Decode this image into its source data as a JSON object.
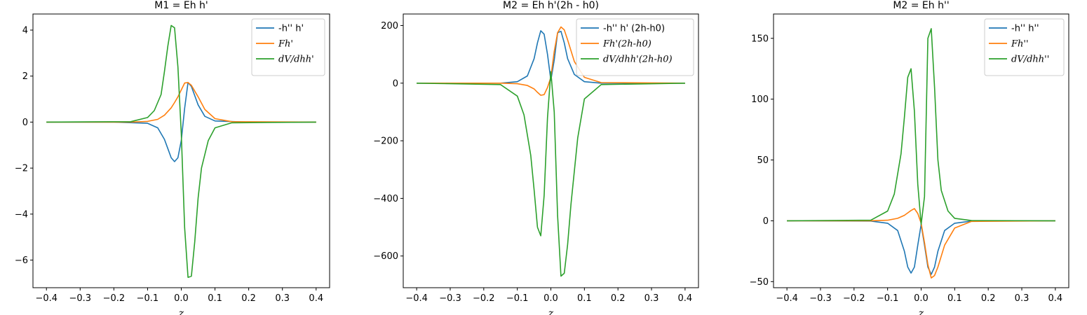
{
  "chart_data": [
    {
      "type": "line",
      "title": "M1 = Eh h'",
      "xlabel": "z",
      "ylabel": "",
      "xlim": [
        -0.44,
        0.44
      ],
      "ylim": [
        -7.2,
        4.7
      ],
      "xticks": [
        -0.4,
        -0.3,
        -0.2,
        -0.1,
        0.0,
        0.1,
        0.2,
        0.3,
        0.4
      ],
      "xtick_labels": [
        "−0.4",
        "−0.3",
        "−0.2",
        "−0.1",
        "0.0",
        "0.1",
        "0.2",
        "0.3",
        "0.4"
      ],
      "yticks": [
        -6,
        -4,
        -2,
        0,
        2,
        4
      ],
      "ytick_labels": [
        "−6",
        "−4",
        "−2",
        "0",
        "2",
        "4"
      ],
      "legend_position": "upper right",
      "series": [
        {
          "name": "-h'' h'",
          "color": "#1f77b4",
          "x": [
            -0.4,
            -0.2,
            -0.1,
            -0.07,
            -0.05,
            -0.04,
            -0.03,
            -0.02,
            -0.01,
            0.0,
            0.01,
            0.02,
            0.03,
            0.04,
            0.05,
            0.07,
            0.1,
            0.2,
            0.4
          ],
          "y": [
            0,
            0,
            -0.05,
            -0.25,
            -0.75,
            -1.15,
            -1.55,
            -1.72,
            -1.55,
            -0.8,
            0.6,
            1.72,
            1.55,
            1.15,
            0.75,
            0.25,
            0.05,
            0,
            0
          ]
        },
        {
          "name": "Fh'",
          "color": "#ff7f0e",
          "math": true,
          "x": [
            -0.4,
            -0.15,
            -0.1,
            -0.07,
            -0.05,
            -0.03,
            -0.02,
            -0.01,
            0.0,
            0.01,
            0.02,
            0.03,
            0.05,
            0.07,
            0.1,
            0.15,
            0.4
          ],
          "y": [
            0,
            0,
            0.03,
            0.12,
            0.3,
            0.62,
            0.85,
            1.1,
            1.4,
            1.7,
            1.72,
            1.6,
            1.1,
            0.55,
            0.15,
            0.02,
            0
          ]
        },
        {
          "name": "dV/dhh'",
          "color": "#2ca02c",
          "math": true,
          "x": [
            -0.4,
            -0.15,
            -0.1,
            -0.08,
            -0.06,
            -0.05,
            -0.04,
            -0.03,
            -0.02,
            -0.01,
            0.0,
            0.01,
            0.02,
            0.03,
            0.04,
            0.05,
            0.06,
            0.08,
            0.1,
            0.15,
            0.4
          ],
          "y": [
            0,
            0.02,
            0.2,
            0.5,
            1.2,
            2.2,
            3.3,
            4.2,
            4.1,
            2.4,
            -0.5,
            -4.6,
            -6.75,
            -6.7,
            -5.2,
            -3.3,
            -2.0,
            -0.8,
            -0.25,
            -0.03,
            0
          ]
        }
      ]
    },
    {
      "type": "line",
      "title": "M2 = Eh h'(2h - h0)",
      "xlabel": "z",
      "ylabel": "",
      "xlim": [
        -0.44,
        0.44
      ],
      "ylim": [
        -710,
        240
      ],
      "xticks": [
        -0.4,
        -0.3,
        -0.2,
        -0.1,
        0.0,
        0.1,
        0.2,
        0.3,
        0.4
      ],
      "xtick_labels": [
        "−0.4",
        "−0.3",
        "−0.2",
        "−0.1",
        "0.0",
        "0.1",
        "0.2",
        "0.3",
        "0.4"
      ],
      "yticks": [
        -600,
        -400,
        -200,
        0,
        200
      ],
      "ytick_labels": [
        "−600",
        "−400",
        "−200",
        "0",
        "200"
      ],
      "legend_position": "upper right",
      "series": [
        {
          "name": "-h'' h' (2h-h0)",
          "color": "#1f77b4",
          "x": [
            -0.4,
            -0.15,
            -0.1,
            -0.07,
            -0.05,
            -0.04,
            -0.03,
            -0.02,
            -0.01,
            0.0,
            0.01,
            0.02,
            0.03,
            0.04,
            0.05,
            0.07,
            0.1,
            0.15,
            0.4
          ],
          "y": [
            0,
            0,
            5,
            25,
            85,
            140,
            182,
            170,
            100,
            10,
            80,
            175,
            180,
            140,
            85,
            30,
            5,
            0,
            0
          ]
        },
        {
          "name": "Fh'(2h-h0)",
          "color": "#ff7f0e",
          "math": true,
          "x": [
            -0.4,
            -0.15,
            -0.1,
            -0.07,
            -0.05,
            -0.04,
            -0.03,
            -0.02,
            -0.01,
            0.0,
            0.01,
            0.02,
            0.03,
            0.04,
            0.05,
            0.07,
            0.1,
            0.15,
            0.4
          ],
          "y": [
            0,
            0,
            -2,
            -8,
            -20,
            -32,
            -42,
            -40,
            -15,
            20,
            110,
            175,
            195,
            185,
            150,
            75,
            20,
            2,
            0
          ]
        },
        {
          "name": "dV/dhh'(2h-h0)",
          "color": "#2ca02c",
          "math": true,
          "x": [
            -0.4,
            -0.15,
            -0.1,
            -0.08,
            -0.06,
            -0.05,
            -0.04,
            -0.03,
            -0.02,
            -0.01,
            0.0,
            0.01,
            0.02,
            0.03,
            0.04,
            0.05,
            0.06,
            0.08,
            0.1,
            0.15,
            0.4
          ],
          "y": [
            0,
            -5,
            -45,
            -110,
            -250,
            -370,
            -500,
            -530,
            -390,
            -120,
            40,
            -100,
            -460,
            -670,
            -660,
            -560,
            -420,
            -190,
            -55,
            -5,
            0
          ]
        }
      ]
    },
    {
      "type": "line",
      "title": "M2 = Eh h''",
      "xlabel": "z",
      "ylabel": "",
      "xlim": [
        -0.44,
        0.44
      ],
      "ylim": [
        -55,
        170
      ],
      "xticks": [
        -0.4,
        -0.3,
        -0.2,
        -0.1,
        0.0,
        0.1,
        0.2,
        0.3,
        0.4
      ],
      "xtick_labels": [
        "−0.4",
        "−0.3",
        "−0.2",
        "−0.1",
        "0.0",
        "0.1",
        "0.2",
        "0.3",
        "0.4"
      ],
      "yticks": [
        -50,
        0,
        50,
        100,
        150
      ],
      "ytick_labels": [
        "−50",
        "0",
        "50",
        "100",
        "150"
      ],
      "legend_position": "upper right",
      "series": [
        {
          "name": "-h'' h''",
          "color": "#1f77b4",
          "x": [
            -0.4,
            -0.15,
            -0.1,
            -0.07,
            -0.05,
            -0.04,
            -0.03,
            -0.02,
            -0.01,
            0.0,
            0.01,
            0.02,
            0.03,
            0.04,
            0.05,
            0.07,
            0.1,
            0.15,
            0.4
          ],
          "y": [
            0,
            -0.2,
            -2,
            -8,
            -25,
            -38,
            -43,
            -38,
            -20,
            -3,
            -20,
            -38,
            -44,
            -38,
            -25,
            -8,
            -2,
            -0.2,
            0
          ]
        },
        {
          "name": "Fh''",
          "color": "#ff7f0e",
          "math": true,
          "x": [
            -0.4,
            -0.15,
            -0.1,
            -0.07,
            -0.05,
            -0.04,
            -0.03,
            -0.02,
            -0.01,
            0.0,
            0.01,
            0.02,
            0.03,
            0.04,
            0.05,
            0.07,
            0.1,
            0.15,
            0.4
          ],
          "y": [
            0,
            0,
            0.5,
            2,
            4.5,
            6.5,
            8.5,
            10,
            6,
            -2,
            -18,
            -36,
            -47,
            -45,
            -38,
            -20,
            -6,
            -0.5,
            0
          ]
        },
        {
          "name": "dV/dhh''",
          "color": "#2ca02c",
          "math": true,
          "x": [
            -0.4,
            -0.15,
            -0.1,
            -0.08,
            -0.06,
            -0.05,
            -0.04,
            -0.03,
            -0.02,
            -0.01,
            0.0,
            0.01,
            0.02,
            0.03,
            0.04,
            0.05,
            0.06,
            0.08,
            0.1,
            0.15,
            0.4
          ],
          "y": [
            0,
            0.5,
            8,
            22,
            55,
            85,
            118,
            125,
            90,
            30,
            -3,
            20,
            150,
            158,
            110,
            50,
            25,
            8,
            2,
            0.2,
            0
          ]
        }
      ]
    }
  ]
}
